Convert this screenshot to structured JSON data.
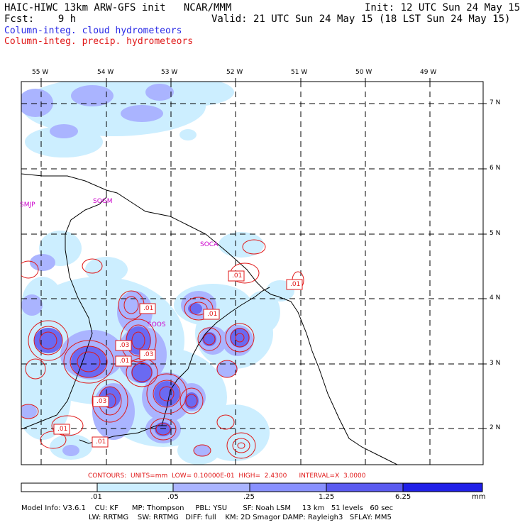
{
  "header": {
    "line1_left": "HAIC-HIWC 13km ARW-GFS init   NCAR/MMM",
    "line1_right": "Init: 12 UTC Sun 24 May 15",
    "line2_left": "Fcst:    9 h",
    "line2_right": "Valid: 21 UTC Sun 24 May 15 (18 LST Sun 24 May 15)",
    "legend_cloud": "Column-integ. cloud hydrometeors",
    "legend_precip": "Column-integ. precip. hydrometeors"
  },
  "axes": {
    "lon_labels": [
      "55 W",
      "54 W",
      "53 W",
      "52 W",
      "51 W",
      "50 W",
      "49 W"
    ],
    "lat_labels": [
      "7 N",
      "6 N",
      "5 N",
      "4 N",
      "3 N",
      "2 N"
    ]
  },
  "stations": [
    "SMJP",
    "SOGM",
    "SOCA",
    "SOOS"
  ],
  "contour_labels": [
    ".01",
    ".01",
    ".01",
    ".01",
    ".03",
    ".03",
    ".01",
    ".03",
    ".01",
    ".01"
  ],
  "contour_info": "CONTOURS:  UNITS=mm  LOW= 0.10000E-01  HIGH=  2.4300      INTERVAL=X  3.0000",
  "colorbar": {
    "labels": [
      ".01",
      ".05",
      ".25",
      "1.25",
      "6.25"
    ],
    "units": "mm",
    "colors": [
      "#ffffff",
      "#cceeff",
      "#aab4ff",
      "#8890ff",
      "#5a5af0",
      "#2020e8"
    ]
  },
  "footer": {
    "line1": "Model Info: V3.6.1    CU: KF      MP: Thompson     PBL: YSU       SF: Noah LSM     13 km   51 levels   60 sec",
    "line2": "LW: RRTMG    SW: RRTMG   DIFF: full    KM: 2D Smagor DAMP: Rayleigh3   SFLAY: MM5"
  }
}
